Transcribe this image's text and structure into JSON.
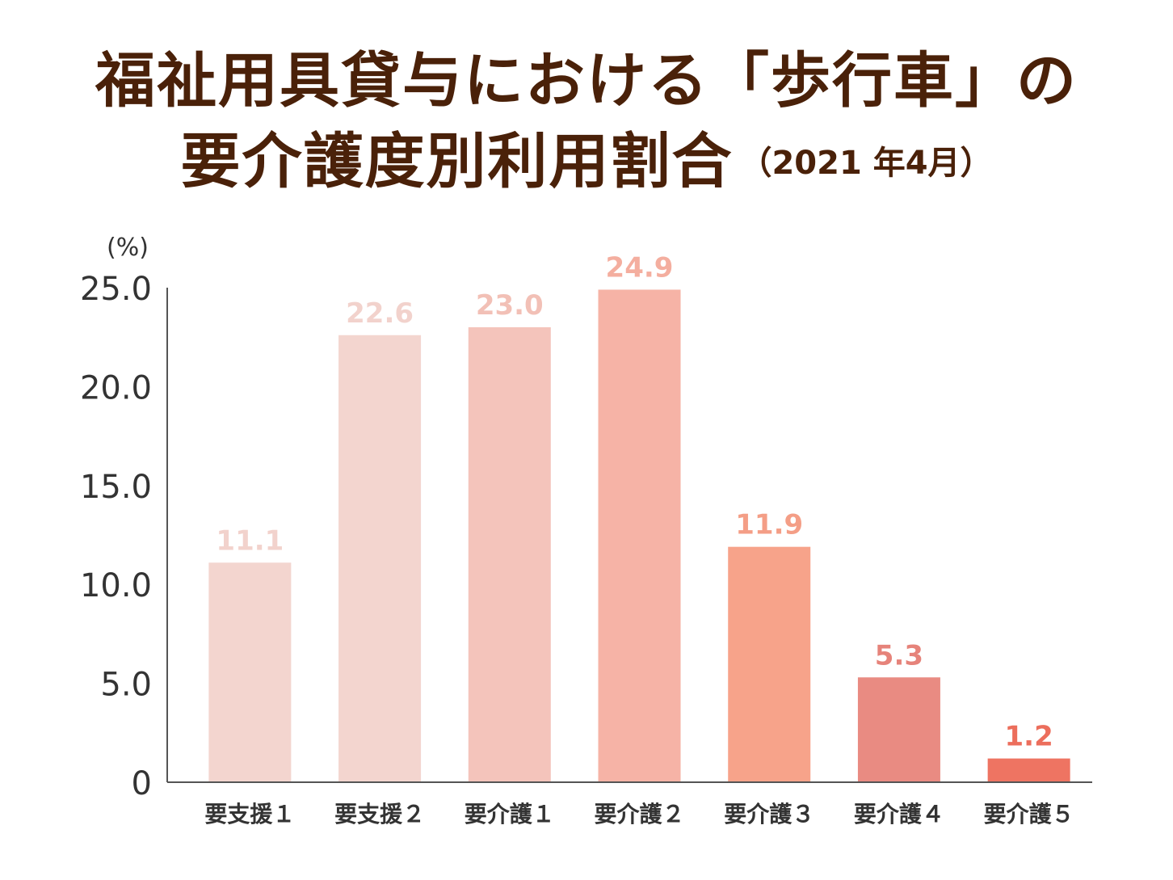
{
  "title": {
    "line1": "福祉用具貸与における「歩行車」の",
    "line2": "要介護度別利用割合",
    "subtitle": "（2021 年4月）"
  },
  "chart_data": {
    "type": "bar",
    "unit_label": "(%)",
    "categories": [
      "要支援１",
      "要支援２",
      "要介護１",
      "要介護２",
      "要介護３",
      "要介護４",
      "要介護５"
    ],
    "values": [
      11.1,
      22.6,
      23.0,
      24.9,
      11.9,
      5.3,
      1.2
    ],
    "value_labels": [
      "11.1",
      "22.6",
      "23.0",
      "24.9",
      "11.9",
      "5.3",
      "1.2"
    ],
    "bar_colors": [
      "#f3d5cf",
      "#f3d5cf",
      "#f4c4bb",
      "#f6b3a6",
      "#f7a38a",
      "#e98b82",
      "#ee7462"
    ],
    "label_colors": [
      "#f2d2cc",
      "#f2d2cc",
      "#f2c0b6",
      "#f4ae9f",
      "#f49e86",
      "#e6837a",
      "#ec6e5c"
    ],
    "ylim": [
      0,
      25
    ],
    "yticks": [
      0,
      5,
      10,
      15,
      20,
      25
    ],
    "ytick_labels": [
      "0",
      "5.0",
      "10.0",
      "15.0",
      "20.0",
      "25.0"
    ],
    "grid": false,
    "axis_color": "#555555",
    "tick_label_color": "#333333",
    "category_label_color": "#333333"
  }
}
